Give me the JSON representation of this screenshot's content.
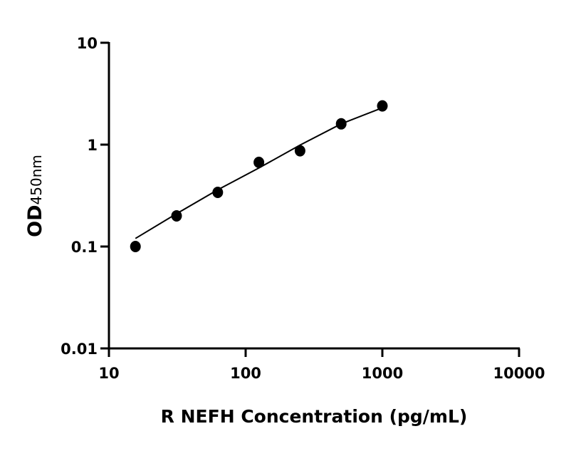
{
  "chart_data": {
    "type": "scatter",
    "title": "",
    "xlabel": "R NEFH Concentration (pg/mL)",
    "ylabel": "OD",
    "ylabel_sub": "450nm",
    "xscale": "log",
    "yscale": "log",
    "xlim": [
      10,
      10000
    ],
    "ylim": [
      0.01,
      10
    ],
    "x_ticks": [
      "10",
      "100",
      "1000",
      "10000"
    ],
    "y_ticks": [
      "0.01",
      "0.1",
      "1",
      "10"
    ],
    "grid": false,
    "legend": "none",
    "series": [
      {
        "x": [
          15.625,
          31.25,
          62.5,
          125,
          250,
          500,
          1000
        ],
        "y": [
          0.1,
          0.2,
          0.34,
          0.67,
          0.87,
          1.6,
          2.4
        ],
        "marker": "circle",
        "color": "#000000"
      }
    ],
    "fit_curve": {
      "x": [
        15.625,
        31.25,
        62.5,
        125,
        250,
        500,
        1000
      ],
      "y": [
        0.12,
        0.21,
        0.36,
        0.59,
        0.99,
        1.6,
        2.3
      ],
      "color": "#000000"
    }
  }
}
